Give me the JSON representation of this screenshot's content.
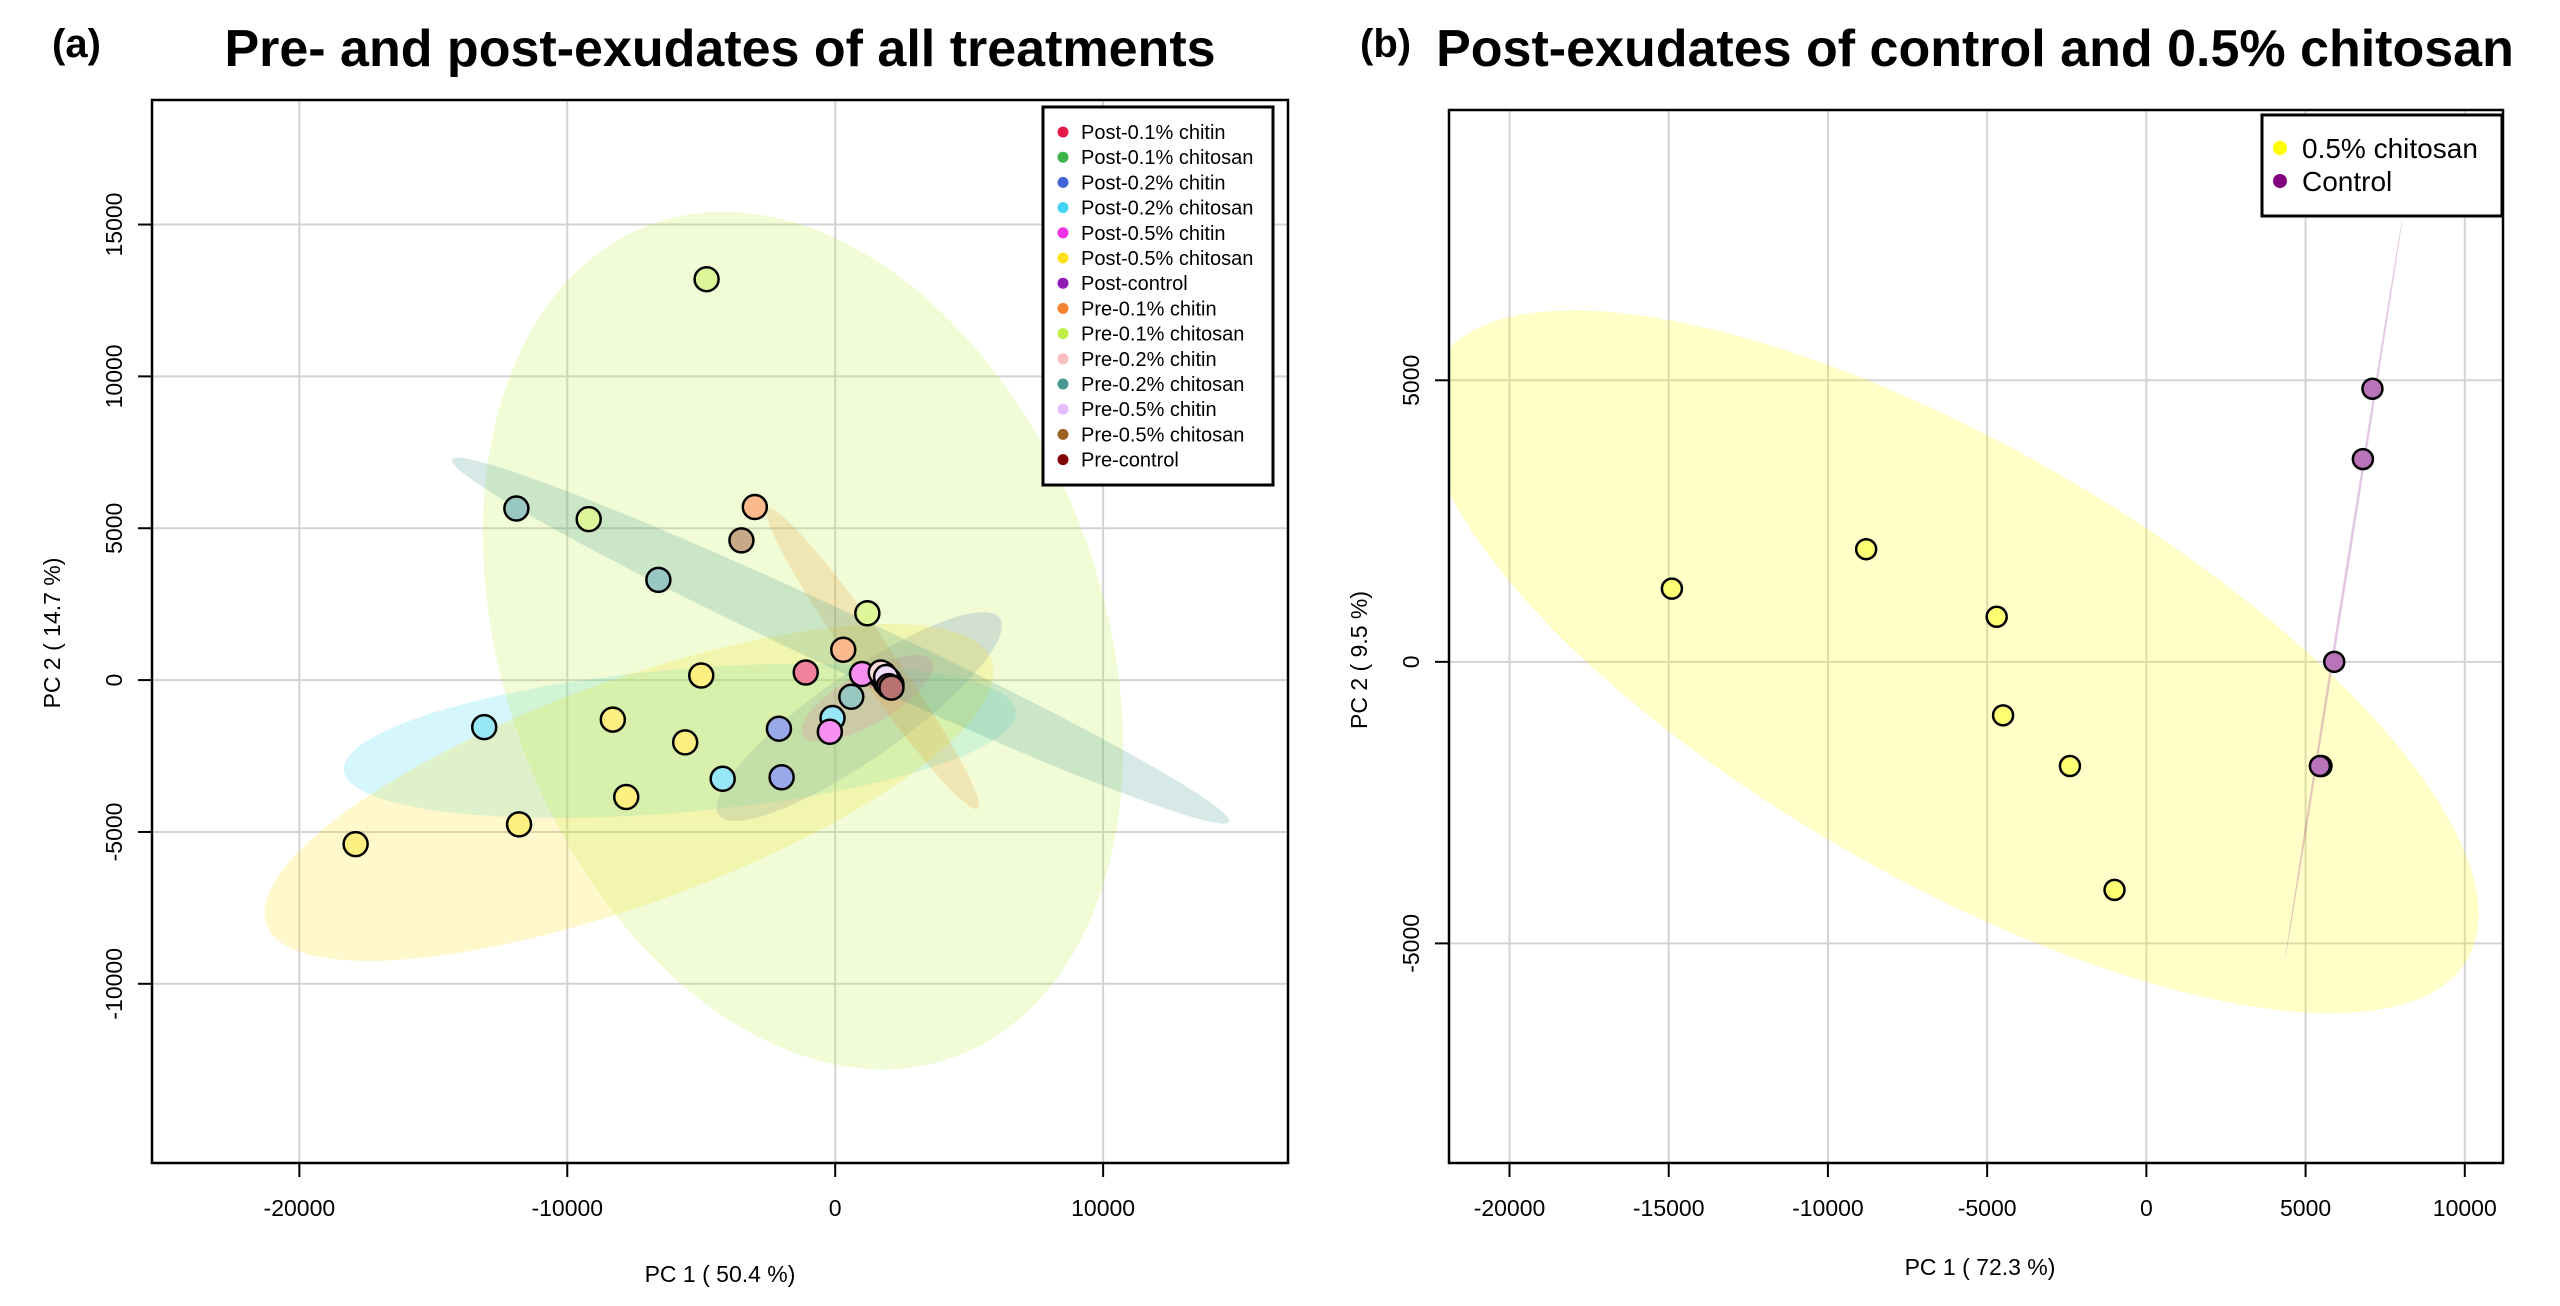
{
  "chart_data": [
    {
      "type": "scatter",
      "panel_label": "(a)",
      "title": "Pre- and post-exudates of all treatments",
      "xlabel": "PC 1 ( 50.4 %)",
      "ylabel": "PC 2 ( 14.7 %)",
      "xlim": [
        -25500,
        16900
      ],
      "ylim": [
        -15900,
        19100
      ],
      "xticks": [
        -20000,
        -10000,
        0,
        10000
      ],
      "yticks": [
        -10000,
        -5000,
        0,
        5000,
        10000,
        15000
      ],
      "xtick_labels": [
        "-20000",
        "-10000",
        "0",
        "10000"
      ],
      "ytick_labels": [
        "-10000",
        "-5000",
        "0",
        "5000",
        "10000",
        "15000"
      ],
      "grid": true,
      "legend_position": "top-right",
      "series": [
        {
          "name": "Post-0.1% chitin",
          "color": "#e41a4a",
          "points": [
            [
              -1100,
              250
            ]
          ],
          "ellipse": {
            "cx": 1500,
            "cy": 0,
            "rx": 800,
            "ry": 250,
            "angle": 0
          }
        },
        {
          "name": "Post-0.1% chitosan",
          "color": "#3cb44b",
          "points": [
            [
              1700,
              150
            ],
            [
              1900,
              -100
            ]
          ],
          "ellipse": null
        },
        {
          "name": "Post-0.2% chitin",
          "color": "#4363d8",
          "points": [
            [
              -2100,
              -1600
            ],
            [
              -2000,
              -3200
            ]
          ],
          "ellipse": {
            "cx": 900,
            "cy": -1200,
            "rx": 6000,
            "ry": 1500,
            "angle": 35
          }
        },
        {
          "name": "Post-0.2% chitosan",
          "color": "#42d4f4",
          "points": [
            [
              -13100,
              -1550
            ],
            [
              -4200,
              -3250
            ],
            [
              -100,
              -1250
            ]
          ],
          "ellipse": {
            "cx": -5800,
            "cy": -2000,
            "rx": 11800,
            "ry": 2500,
            "angle": 5
          }
        },
        {
          "name": "Post-0.5% chitin",
          "color": "#f032e6",
          "points": [
            [
              -200,
              -1700
            ],
            [
              1000,
              200
            ]
          ],
          "ellipse": {
            "cx": 1200,
            "cy": -600,
            "rx": 2600,
            "ry": 900,
            "angle": 30
          }
        },
        {
          "name": "Post-0.5% chitosan",
          "color": "#ffe119",
          "points": [
            [
              -17900,
              -5400
            ],
            [
              -11800,
              -4750
            ],
            [
              -7800,
              -3850
            ],
            [
              -8300,
              -1300
            ],
            [
              -5600,
              -2050
            ],
            [
              -5000,
              150
            ]
          ],
          "ellipse": {
            "cx": -7700,
            "cy": -3700,
            "rx": 13500,
            "ry": 3900,
            "angle": 20
          }
        },
        {
          "name": "Post-control",
          "color": "#911eb4",
          "points": [
            [
              1800,
              200
            ],
            [
              2000,
              0
            ],
            [
              2100,
              -150
            ]
          ],
          "ellipse": {
            "cx": 1800,
            "cy": 0,
            "rx": 600,
            "ry": 400,
            "angle": 0
          }
        },
        {
          "name": "Pre-0.1% chitin",
          "color": "#f58231",
          "points": [
            [
              -3000,
              5700
            ],
            [
              300,
              1000
            ]
          ],
          "ellipse": {
            "cx": 1400,
            "cy": 700,
            "rx": 6400,
            "ry": 700,
            "angle": -55
          }
        },
        {
          "name": "Pre-0.1% chitosan",
          "color": "#bfef45",
          "points": [
            [
              -4800,
              13200
            ],
            [
              -9200,
              5300
            ],
            [
              1200,
              2200
            ]
          ],
          "ellipse": {
            "cx": -1200,
            "cy": 1300,
            "rx": 15500,
            "ry": 10500,
            "angle": -70
          }
        },
        {
          "name": "Pre-0.2% chitin",
          "color": "#fabebe",
          "points": [
            [
              1700,
              250
            ]
          ],
          "ellipse": null
        },
        {
          "name": "Pre-0.2% chitosan",
          "color": "#469990",
          "points": [
            [
              -11900,
              5650
            ],
            [
              -6600,
              3300
            ],
            [
              600,
              -550
            ]
          ],
          "ellipse": {
            "cx": 200,
            "cy": 1300,
            "rx": 15000,
            "ry": 1000,
            "angle": -25
          }
        },
        {
          "name": "Pre-0.5% chitin",
          "color": "#e6beff",
          "points": [
            [
              1900,
              100
            ]
          ],
          "ellipse": null
        },
        {
          "name": "Pre-0.5% chitosan",
          "color": "#9a6324",
          "points": [
            [
              -3500,
              4600
            ]
          ],
          "ellipse": null
        },
        {
          "name": "Pre-control",
          "color": "#800000",
          "points": [
            [
              2000,
              -200
            ],
            [
              2100,
              -250
            ]
          ],
          "ellipse": null
        }
      ]
    },
    {
      "type": "scatter",
      "panel_label": "(b)",
      "title": "Post-exudates of control and 0.5% chitosan",
      "xlabel": "PC 1 ( 72.3 %)",
      "ylabel": "PC 2 ( 9.5 %)",
      "xlim": [
        -21900,
        11200
      ],
      "ylim": [
        -8900,
        9800
      ],
      "xticks": [
        -20000,
        -15000,
        -10000,
        -5000,
        0,
        5000,
        10000
      ],
      "yticks": [
        -5000,
        0,
        5000
      ],
      "xtick_labels": [
        "-20000",
        "-15000",
        "-10000",
        "-5000",
        "0",
        "5000",
        "10000"
      ],
      "ytick_labels": [
        "-5000",
        "0",
        "5000"
      ],
      "grid": true,
      "legend_position": "top-right",
      "series": [
        {
          "name": "0.5% chitosan",
          "color": "#ffff00",
          "points": [
            [
              -14900,
              1300
            ],
            [
              -8800,
              2000
            ],
            [
              -4700,
              800
            ],
            [
              -4500,
              -950
            ],
            [
              -2400,
              -1850
            ],
            [
              -1000,
              -4050
            ]
          ],
          "ellipse": {
            "cx": -6100,
            "cy": 0,
            "rx": 13500,
            "ry": 4900,
            "angle": -30
          }
        },
        {
          "name": "Control",
          "color": "#800080",
          "points": [
            [
              7100,
              4850
            ],
            [
              6800,
              3600
            ],
            [
              5900,
              0
            ],
            [
              5500,
              -1850
            ],
            [
              5450,
              -1850
            ]
          ],
          "ellipse": {
            "cx": 6200,
            "cy": 1300,
            "rx": 8500,
            "ry": 30,
            "angle": 81
          }
        }
      ]
    }
  ]
}
